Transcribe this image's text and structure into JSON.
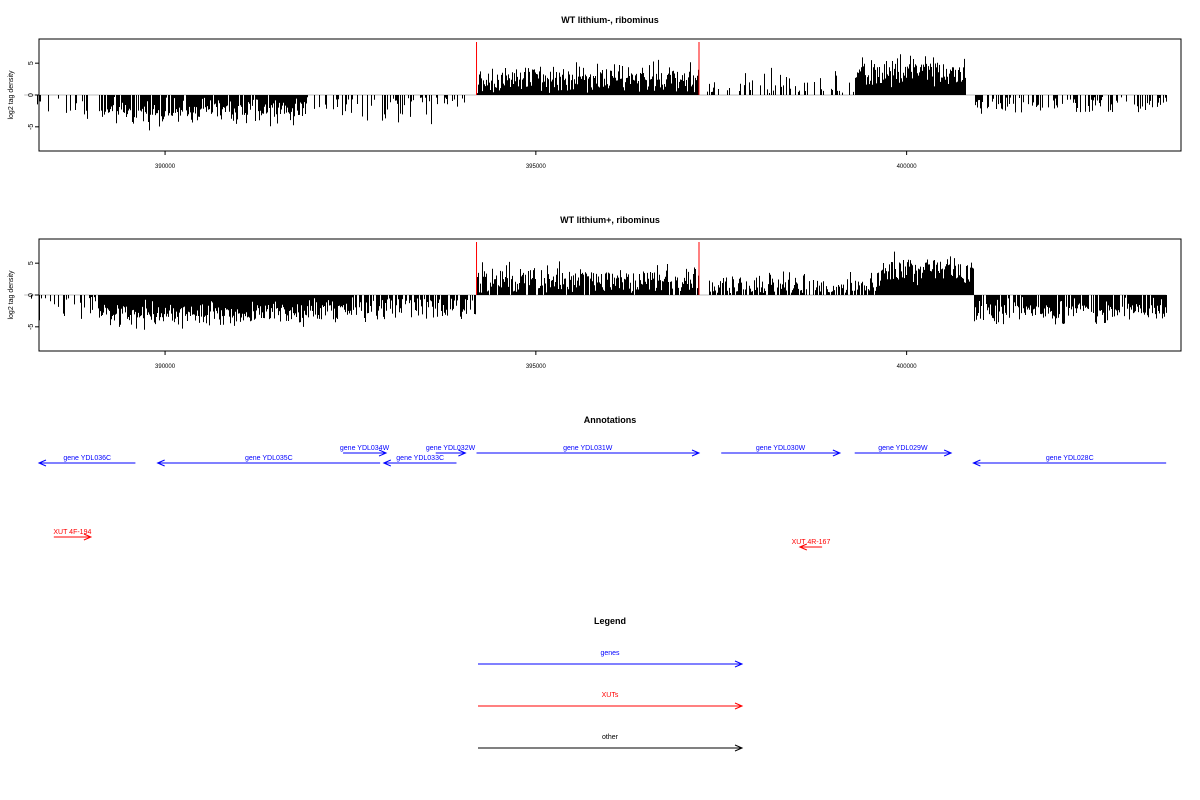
{
  "colors": {
    "bars": "#000000",
    "marker": "#ff0000",
    "gene": "#0000ff",
    "xut": "#ff0000",
    "other": "#000000",
    "axis": "#000000",
    "zero_line": "#bebebe"
  },
  "chart_data": [
    {
      "type": "bar",
      "title": "WT lithium-, ribominus",
      "ylabel": "log2 tag density",
      "xlim": [
        388300,
        403700
      ],
      "ylim": [
        -8.8,
        8.8
      ],
      "x_ticks": [
        390000,
        395000,
        400000
      ],
      "x_tick_labels": [
        "390000",
        "395000",
        "400000"
      ],
      "y_ticks": [
        -5,
        0,
        5
      ],
      "y_tick_labels": [
        "-5",
        "0",
        "5"
      ],
      "marker_positions": [
        394200,
        397200
      ],
      "segments": [
        {
          "start": 388100,
          "end": 389100,
          "mean": -2.2,
          "density": 0.12,
          "amp": 1.0
        },
        {
          "start": 389100,
          "end": 390400,
          "mean": -2.9,
          "density": 0.85,
          "amp": 1.0
        },
        {
          "start": 390400,
          "end": 391900,
          "mean": -2.5,
          "density": 0.9,
          "amp": 1.0
        },
        {
          "start": 391900,
          "end": 392400,
          "mean": -1.4,
          "density": 0.25,
          "amp": 1.2
        },
        {
          "start": 392400,
          "end": 393900,
          "mean": -1.0,
          "density": 0.35,
          "amp": 1.6
        },
        {
          "start": 393900,
          "end": 394200,
          "mean": -0.5,
          "density": 0.2,
          "amp": 1.5
        },
        {
          "start": 394200,
          "end": 397200,
          "mean": 2.6,
          "density": 1.0,
          "amp": 1.2
        },
        {
          "start": 397300,
          "end": 399300,
          "mean": 1.2,
          "density": 0.3,
          "amp": 1.3
        },
        {
          "start": 399300,
          "end": 400800,
          "mean": 3.7,
          "density": 1.0,
          "amp": 1.2
        },
        {
          "start": 400900,
          "end": 403500,
          "mean": -1.5,
          "density": 0.45,
          "amp": 0.8
        }
      ]
    },
    {
      "type": "bar",
      "title": "WT lithium+, ribominus",
      "ylabel": "log2 tag density",
      "xlim": [
        388300,
        403700
      ],
      "ylim": [
        -8.8,
        8.8
      ],
      "x_ticks": [
        390000,
        395000,
        400000
      ],
      "x_tick_labels": [
        "390000",
        "395000",
        "400000"
      ],
      "y_ticks": [
        -5,
        0,
        5
      ],
      "y_tick_labels": [
        "-5",
        "0",
        "5"
      ],
      "marker_positions": [
        394200,
        397200
      ],
      "segments": [
        {
          "start": 388100,
          "end": 389100,
          "mean": -1.5,
          "density": 0.4,
          "amp": 1.3
        },
        {
          "start": 389100,
          "end": 390600,
          "mean": -3.0,
          "density": 1.0,
          "amp": 1.0
        },
        {
          "start": 390600,
          "end": 392500,
          "mean": -2.7,
          "density": 1.0,
          "amp": 1.0
        },
        {
          "start": 392500,
          "end": 394200,
          "mean": -1.9,
          "density": 0.75,
          "amp": 1.0
        },
        {
          "start": 394200,
          "end": 397200,
          "mean": 2.2,
          "density": 0.95,
          "amp": 1.2
        },
        {
          "start": 397300,
          "end": 398700,
          "mean": 1.6,
          "density": 0.7,
          "amp": 1.1
        },
        {
          "start": 398700,
          "end": 399600,
          "mean": 1.4,
          "density": 0.6,
          "amp": 1.2
        },
        {
          "start": 399600,
          "end": 400900,
          "mean": 4.2,
          "density": 1.0,
          "amp": 1.1
        },
        {
          "start": 400900,
          "end": 403500,
          "mean": -2.4,
          "density": 0.85,
          "amp": 1.0
        }
      ]
    }
  ],
  "annotations": {
    "title": "Annotations",
    "features": [
      {
        "label": "gene YDL036C",
        "kind": "gene",
        "start": 388300,
        "end": 389600,
        "strand": "-",
        "row": 2
      },
      {
        "label": "gene YDL035C",
        "kind": "gene",
        "start": 389900,
        "end": 392900,
        "strand": "-",
        "row": 2
      },
      {
        "label": "gene YDL034W",
        "kind": "gene",
        "start": 392400,
        "end": 392980,
        "strand": "+",
        "row": 1
      },
      {
        "label": "gene YDL033C",
        "kind": "gene",
        "start": 392950,
        "end": 393930,
        "strand": "-",
        "row": 2
      },
      {
        "label": "gene YDL032W",
        "kind": "gene",
        "start": 393650,
        "end": 394050,
        "strand": "+",
        "row": 1
      },
      {
        "label": "gene YDL031W",
        "kind": "gene",
        "start": 394200,
        "end": 397200,
        "strand": "+",
        "row": 1
      },
      {
        "label": "gene YDL030W",
        "kind": "gene",
        "start": 397500,
        "end": 399100,
        "strand": "+",
        "row": 1
      },
      {
        "label": "gene YDL029W",
        "kind": "gene",
        "start": 399300,
        "end": 400600,
        "strand": "+",
        "row": 1
      },
      {
        "label": "gene YDL028C",
        "kind": "gene",
        "start": 400900,
        "end": 403500,
        "strand": "-",
        "row": 2
      },
      {
        "label": "XUT 4F-194",
        "kind": "xut",
        "start": 388500,
        "end": 389000,
        "strand": "+",
        "row": 3
      },
      {
        "label": "XUT 4R-167",
        "kind": "xut",
        "start": 398560,
        "end": 398860,
        "strand": "-",
        "row": 4
      }
    ]
  },
  "legend": {
    "title": "Legend",
    "items": [
      {
        "label": "genes",
        "kind": "gene"
      },
      {
        "label": "XUTs",
        "kind": "xut"
      },
      {
        "label": "other",
        "kind": "other"
      }
    ]
  }
}
